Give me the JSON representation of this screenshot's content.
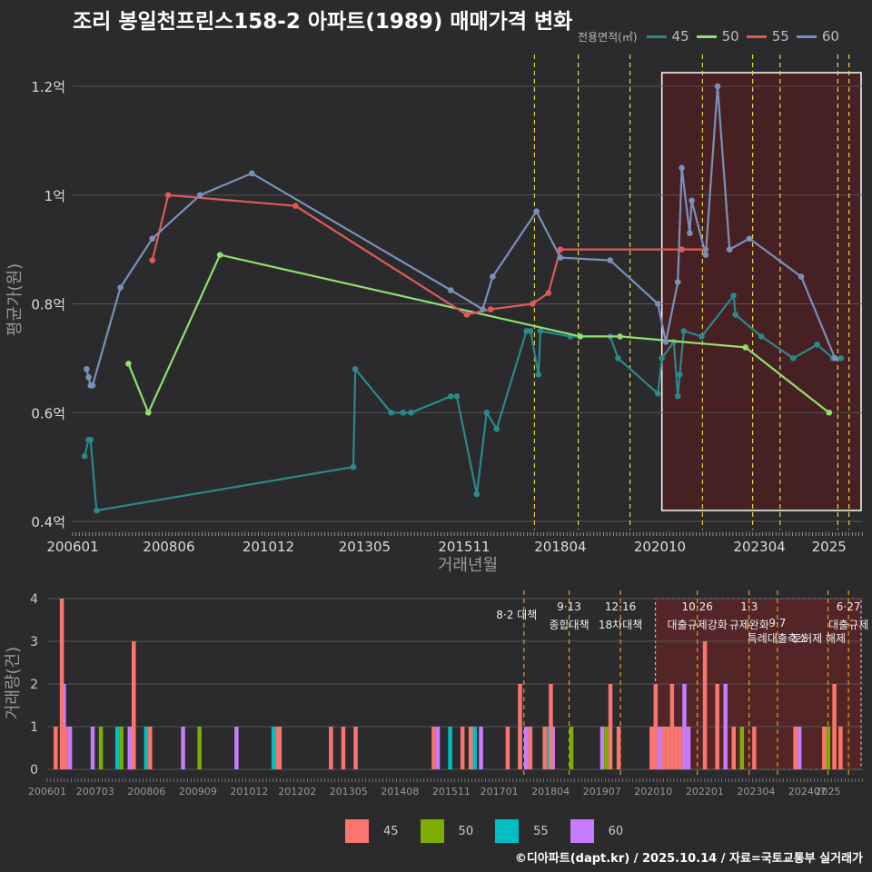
{
  "title": "조리 봉일천프린스158-2 아파트(1989) 매매가격 변화",
  "footer": "©디아파트(dapt.kr) / 2025.10.14 / 자료=국토교통부 실거래가",
  "colors": {
    "background": "#2b2a2c",
    "grid": "#555555",
    "policy_line": "#e8d84a",
    "highlight_fill": "#4a1f22",
    "line45": "#2a8a8a",
    "line50": "#90e070",
    "line55": "#e05a5a",
    "line60": "#7a90b8",
    "bar45": "#f8766d",
    "bar50": "#7cae00",
    "bar55": "#00bfc4",
    "bar60": "#c77cff"
  },
  "chart_data": [
    {
      "type": "line",
      "title": "조리 봉일천프린스158-2 아파트(1989) 매매가격 변화",
      "xlabel": "거래년월",
      "ylabel": "평균가(원)",
      "ylim": [
        0.4,
        1.25
      ],
      "y_ticks": [
        0.4,
        0.6,
        0.8,
        1.0,
        1.2
      ],
      "y_tick_labels": [
        "0.4억",
        "0.6억",
        "0.8억",
        "1억",
        "1.2억"
      ],
      "x_ticks": [
        "200601",
        "200806",
        "201012",
        "201305",
        "201511",
        "201804",
        "202010",
        "202304",
        "2025"
      ],
      "legend_title": "전용면적(㎡)",
      "legend": [
        "45",
        "50",
        "55",
        "60"
      ],
      "series": [
        {
          "name": "45",
          "x": [
            2006.3,
            2006.4,
            2006.45,
            2006.6,
            2013.05,
            2013.1,
            2014.0,
            2014.3,
            2014.5,
            2015.5,
            2015.65,
            2016.15,
            2016.4,
            2016.65,
            2017.4,
            2017.5,
            2017.7,
            2017.75,
            2018.5,
            2019.5,
            2019.7,
            2020.7,
            2020.8,
            2021.1,
            2021.2,
            2021.25,
            2021.35,
            2021.8,
            2022.6,
            2022.65,
            2023.3,
            2024.1,
            2024.7,
            2025.1,
            2025.3
          ],
          "values": [
            0.52,
            0.55,
            0.55,
            0.42,
            0.5,
            0.68,
            0.6,
            0.6,
            0.6,
            0.63,
            0.63,
            0.45,
            0.6,
            0.57,
            0.75,
            0.75,
            0.67,
            0.75,
            0.74,
            0.74,
            0.7,
            0.635,
            0.7,
            0.73,
            0.63,
            0.67,
            0.75,
            0.74,
            0.815,
            0.78,
            0.74,
            0.7,
            0.725,
            0.7,
            0.7
          ]
        },
        {
          "name": "50",
          "x": [
            2007.4,
            2007.9,
            2009.7,
            2018.75,
            2019.75,
            2022.9,
            2025.0
          ],
          "values": [
            0.69,
            0.6,
            0.89,
            0.74,
            0.74,
            0.72,
            0.6
          ]
        },
        {
          "name": "55",
          "x": [
            2008.0,
            2008.4,
            2011.6,
            2015.9,
            2016.5,
            2017.55,
            2017.95,
            2018.25,
            2021.3,
            2021.9
          ],
          "values": [
            0.88,
            1.0,
            0.98,
            0.78,
            0.79,
            0.8,
            0.82,
            0.9,
            0.9,
            0.9
          ]
        },
        {
          "name": "60",
          "x": [
            2006.35,
            2006.4,
            2006.45,
            2006.5,
            2007.2,
            2008.0,
            2009.2,
            2010.5,
            2015.5,
            2016.3,
            2016.55,
            2017.65,
            2018.25,
            2019.5,
            2020.7,
            2020.9,
            2021.2,
            2021.3,
            2021.5,
            2021.55,
            2021.9,
            2022.2,
            2022.5,
            2023.0,
            2024.3,
            2025.15
          ],
          "values": [
            0.68,
            0.665,
            0.65,
            0.65,
            0.83,
            0.92,
            1.0,
            1.04,
            0.825,
            0.79,
            0.85,
            0.97,
            0.885,
            0.88,
            0.8,
            0.73,
            0.84,
            1.05,
            0.93,
            0.99,
            0.89,
            1.2,
            0.9,
            0.92,
            0.85,
            0.7
          ]
        }
      ],
      "policy_dates": [
        2017.6,
        2018.7,
        2020.0,
        2021.82,
        2023.08,
        2023.77,
        2025.22,
        2025.5
      ],
      "highlight_range": [
        2020.8,
        2025.8
      ]
    },
    {
      "type": "bar",
      "xlabel": "",
      "ylabel": "거래량(건)",
      "ylim": [
        0,
        4
      ],
      "y_ticks": [
        0,
        1,
        2,
        3,
        4
      ],
      "x_ticks": [
        "200601",
        "200703",
        "200806",
        "200909",
        "201012",
        "201202",
        "201305",
        "201408",
        "201511",
        "201701",
        "201804",
        "201907",
        "202010",
        "202201",
        "202304",
        "202407",
        "2025"
      ],
      "legend": [
        "45",
        "50",
        "55",
        "60"
      ],
      "policy_labels": [
        {
          "date": "8·2 대책",
          "x": 2017.6
        },
        {
          "date": "9·13",
          "name": "종합대책",
          "x": 2018.7
        },
        {
          "date": "12·16",
          "name": "18차대책",
          "x": 2019.95
        },
        {
          "date": "10·26",
          "name": "대출규제강화",
          "x": 2021.82
        },
        {
          "date": "1·3",
          "name": "규제완화",
          "x": 2023.08
        },
        {
          "date": "9·7",
          "name": "특례대출축소",
          "x": 2023.77
        },
        {
          "name": "토허제 해제",
          "x": 2025.0
        },
        {
          "date": "6·27",
          "name": "대출규제",
          "x": 2025.5
        }
      ],
      "highlight_range": [
        2020.8,
        2025.8
      ],
      "series": [
        {
          "name": "45",
          "x": [
            2006.2,
            2006.35,
            2006.45,
            2008.1,
            2008.5,
            2011.6,
            2011.65,
            2012.9,
            2013.2,
            2013.5,
            2015.4,
            2016.1,
            2016.3,
            2017.2,
            2017.5,
            2017.75,
            2018.1,
            2018.25,
            2019.7,
            2019.9,
            2020.7,
            2020.75,
            2020.8,
            2021.0,
            2021.1,
            2021.2,
            2021.3,
            2021.4,
            2022.0,
            2022.3,
            2022.7,
            2023.2,
            2024.2,
            2024.9,
            2025.15,
            2025.3
          ],
          "values": [
            1,
            4,
            1,
            3,
            1,
            1,
            1,
            1,
            1,
            1,
            1,
            1,
            1,
            1,
            2,
            1,
            1,
            2,
            2,
            1,
            1,
            1,
            2,
            1,
            1,
            2,
            1,
            1,
            3,
            2,
            1,
            1,
            1,
            1,
            2,
            1
          ]
        },
        {
          "name": "50",
          "x": [
            2007.3,
            2007.8,
            2009.7,
            2018.75,
            2019.6,
            2022.9,
            2025.0
          ],
          "values": [
            1,
            1,
            1,
            1,
            1,
            1,
            1
          ]
        },
        {
          "name": "55",
          "x": [
            2007.7,
            2008.4,
            2011.5,
            2015.8,
            2016.4,
            2017.5,
            2018.2
          ],
          "values": [
            1,
            1,
            1,
            1,
            1,
            1,
            1
          ]
        },
        {
          "name": "60",
          "x": [
            2006.4,
            2006.55,
            2007.1,
            2008.0,
            2009.3,
            2010.6,
            2015.5,
            2016.3,
            2016.55,
            2017.65,
            2018.3,
            2019.5,
            2020.9,
            2021.5,
            2021.6,
            2022.5,
            2024.3
          ],
          "values": [
            2,
            1,
            1,
            1,
            1,
            1,
            1,
            1,
            1,
            1,
            1,
            1,
            1,
            2,
            1,
            2,
            1
          ]
        }
      ]
    }
  ]
}
